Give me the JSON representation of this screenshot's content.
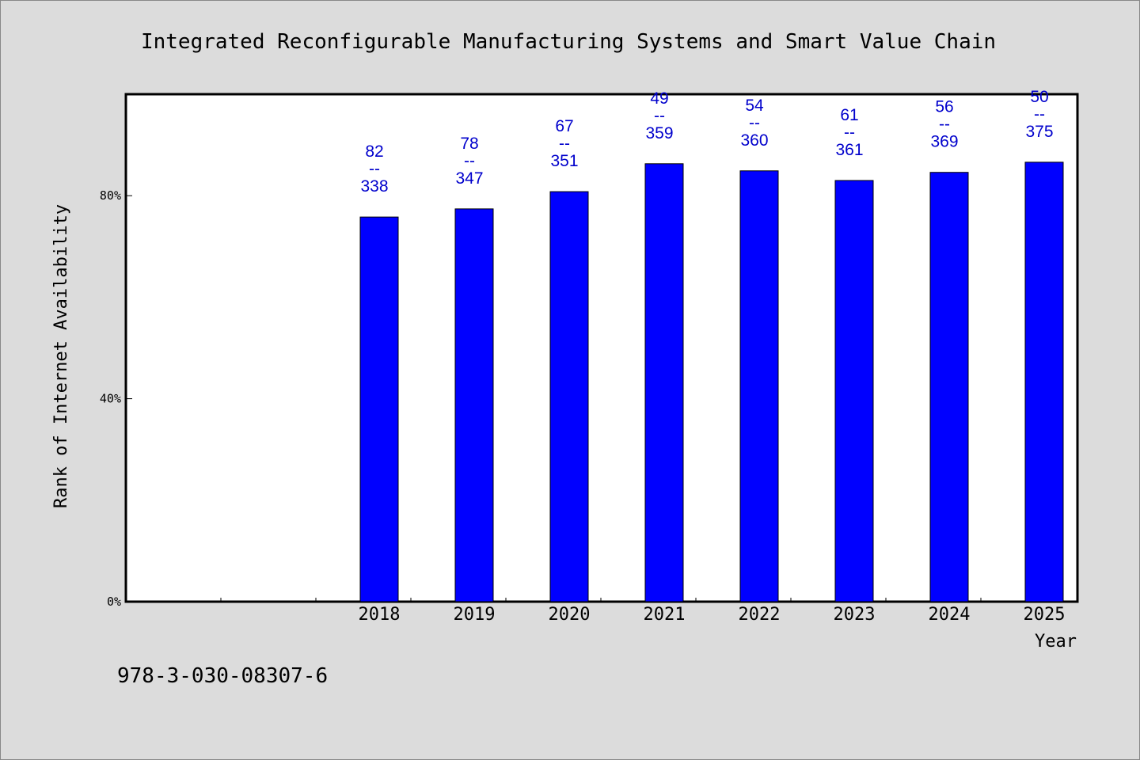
{
  "chart_data": {
    "type": "bar",
    "title": "Integrated Reconfigurable Manufacturing Systems and Smart Value Chain",
    "xlabel": "Year",
    "ylabel": "Rank of Internet Availability",
    "categories": [
      "",
      "",
      "2018",
      "2019",
      "2020",
      "2021",
      "2022",
      "2023",
      "2024",
      "2025"
    ],
    "values": [
      null,
      null,
      75.8,
      77.4,
      80.8,
      86.3,
      84.9,
      83.0,
      84.6,
      86.6
    ],
    "value_unit": "%",
    "ylim": [
      0,
      100
    ],
    "yticks": [
      0,
      40,
      80
    ],
    "ytick_labels": [
      "0%",
      "40%",
      "80%"
    ],
    "bar_labels": [
      null,
      null,
      {
        "top": "82",
        "mid": "--",
        "bottom": "338"
      },
      {
        "top": "78",
        "mid": "--",
        "bottom": "347"
      },
      {
        "top": "67",
        "mid": "--",
        "bottom": "351"
      },
      {
        "top": "49",
        "mid": "--",
        "bottom": "359"
      },
      {
        "top": "54",
        "mid": "--",
        "bottom": "360"
      },
      {
        "top": "61",
        "mid": "--",
        "bottom": "361"
      },
      {
        "top": "56",
        "mid": "--",
        "bottom": "369"
      },
      {
        "top": "50",
        "mid": "--",
        "bottom": "375"
      }
    ],
    "grid": false,
    "colors": {
      "bar": "#0000ff",
      "label": "#0000cc",
      "plot_bg": "#ffffff",
      "page_bg": "#dcdcdc"
    }
  },
  "footer": {
    "isbn": "978-3-030-08307-6"
  }
}
